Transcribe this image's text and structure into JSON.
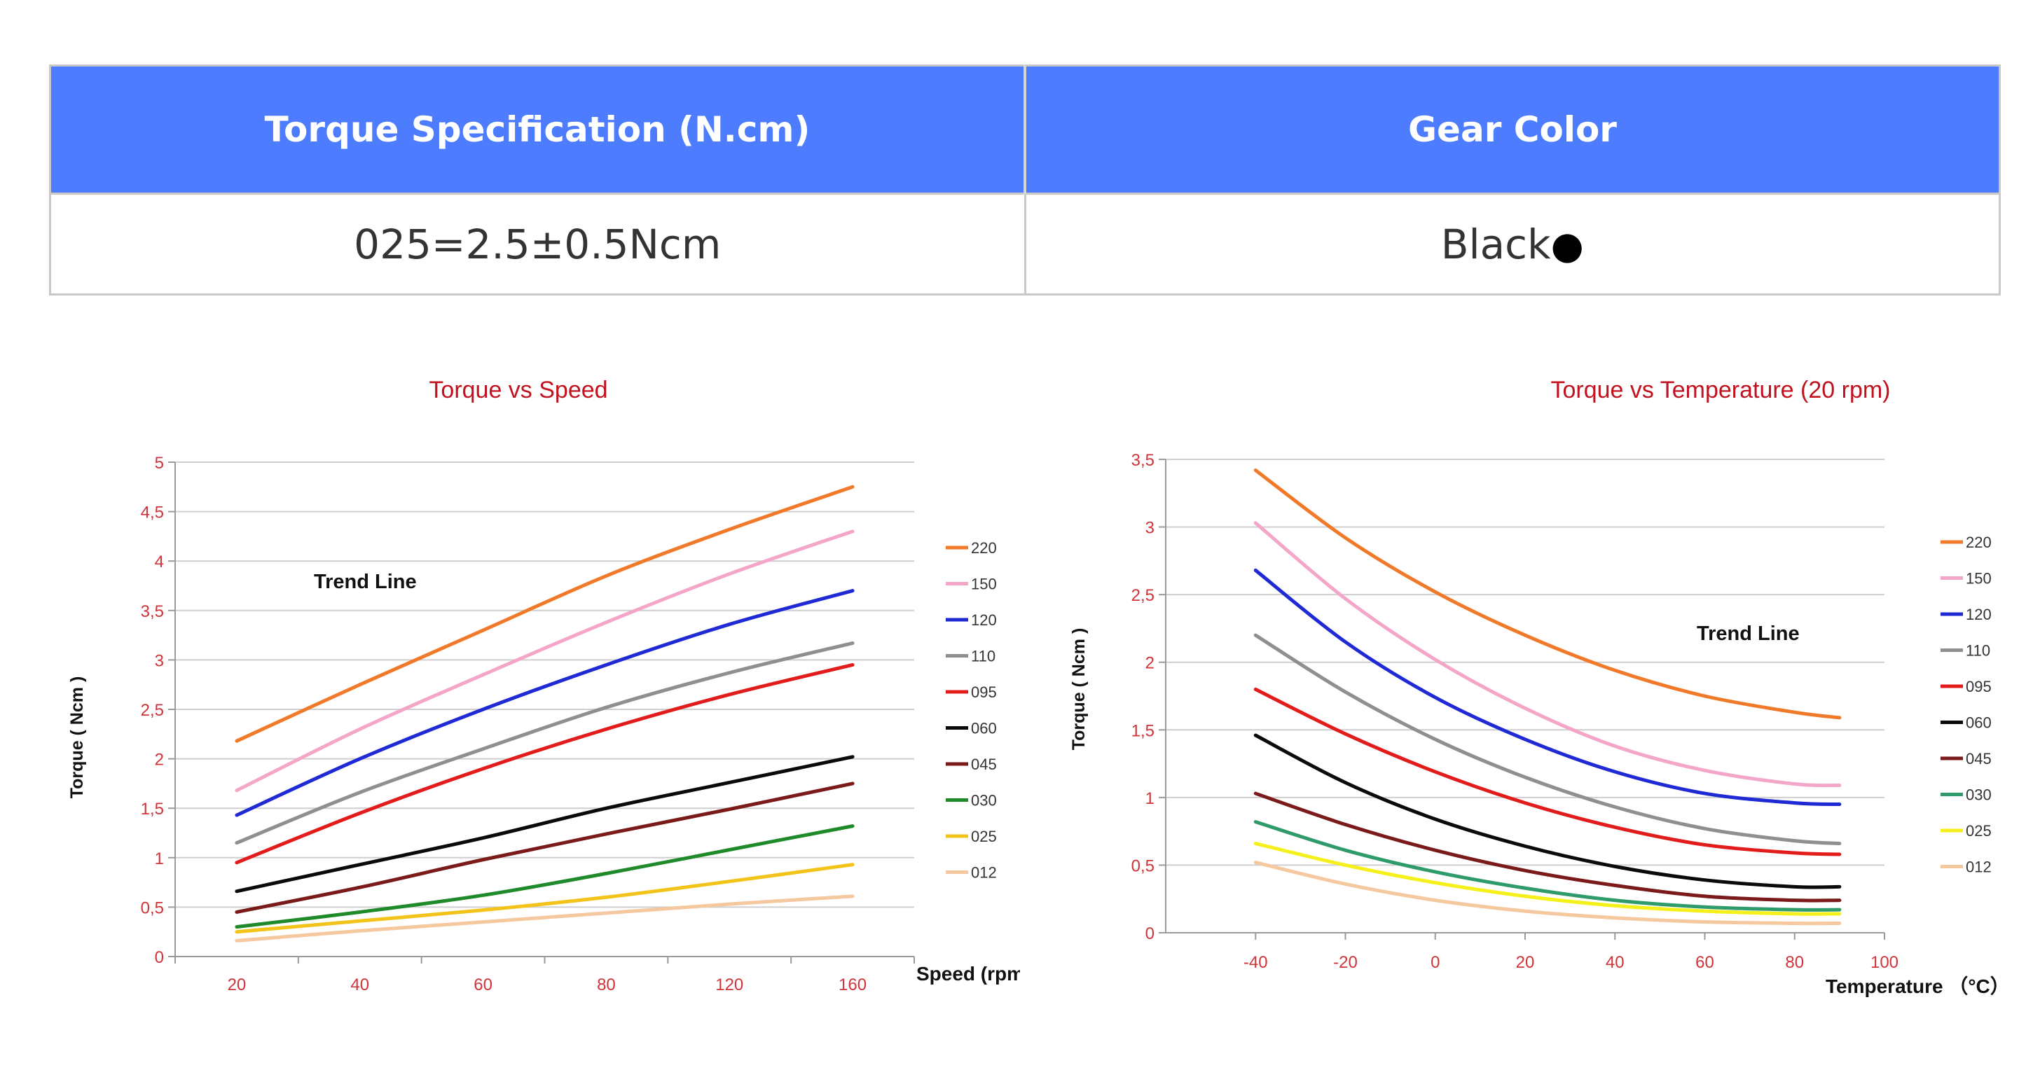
{
  "table": {
    "headers": [
      "Torque Specification (N.cm)",
      "Gear Color"
    ],
    "row": [
      "025=2.5±0.5Ncm",
      "Black"
    ],
    "color_dot": "●"
  },
  "chart_data": [
    {
      "type": "line",
      "title": "Torque vs Speed",
      "xlabel": "Speed (rpm)",
      "ylabel": "Torque ( Ncm )",
      "annotation": "Trend Line",
      "x_ticks": [
        "20",
        "40",
        "60",
        "80",
        "120",
        "160"
      ],
      "y_ticks": [
        "0",
        "0,5",
        "1",
        "1,5",
        "2",
        "2,5",
        "3",
        "3,5",
        "4",
        "4,5",
        "5"
      ],
      "ylim": [
        0,
        5
      ],
      "grid": true,
      "legend_position": "right",
      "x": [
        "20",
        "40",
        "60",
        "80",
        "120",
        "160"
      ],
      "series": [
        {
          "name": "220",
          "color": "#f07a2a",
          "values": [
            2.18,
            2.75,
            3.3,
            3.85,
            4.32,
            4.75
          ]
        },
        {
          "name": "150",
          "color": "#f4a6c8",
          "values": [
            1.68,
            2.3,
            2.85,
            3.38,
            3.87,
            4.3
          ]
        },
        {
          "name": "120",
          "color": "#1f2ad4",
          "values": [
            1.43,
            2.0,
            2.5,
            2.95,
            3.36,
            3.7
          ]
        },
        {
          "name": "110",
          "color": "#8f8f8f",
          "values": [
            1.15,
            1.66,
            2.1,
            2.52,
            2.87,
            3.17
          ]
        },
        {
          "name": "095",
          "color": "#e21b1b",
          "values": [
            0.95,
            1.45,
            1.9,
            2.3,
            2.65,
            2.95
          ]
        },
        {
          "name": "060",
          "color": "#0a0a0a",
          "values": [
            0.66,
            0.93,
            1.2,
            1.5,
            1.76,
            2.02
          ]
        },
        {
          "name": "045",
          "color": "#7a1a1a",
          "values": [
            0.45,
            0.7,
            0.98,
            1.24,
            1.49,
            1.75
          ]
        },
        {
          "name": "030",
          "color": "#1e8a2a",
          "values": [
            0.3,
            0.45,
            0.62,
            0.84,
            1.08,
            1.32
          ]
        },
        {
          "name": "025",
          "color": "#f2c318",
          "values": [
            0.25,
            0.36,
            0.47,
            0.6,
            0.76,
            0.93
          ]
        },
        {
          "name": "012",
          "color": "#f6c8a0",
          "values": [
            0.16,
            0.26,
            0.35,
            0.44,
            0.53,
            0.61
          ]
        }
      ]
    },
    {
      "type": "line",
      "title": "Torque vs Temperature (20 rpm)",
      "xlabel": "Temperature （°C）",
      "ylabel": "Torque ( Ncm )",
      "annotation": "Trend Line",
      "x_ticks": [
        "-40",
        "-20",
        "0",
        "20",
        "40",
        "60",
        "80",
        "100"
      ],
      "y_ticks": [
        "0",
        "0,5",
        "1",
        "1,5",
        "2",
        "2,5",
        "3",
        "3,5"
      ],
      "xlim": [
        -60,
        100
      ],
      "ylim": [
        0,
        3.5
      ],
      "grid": true,
      "legend_position": "right",
      "x": [
        -40,
        -20,
        0,
        20,
        40,
        60,
        80,
        90
      ],
      "series": [
        {
          "name": "220",
          "color": "#f07a2a",
          "values": [
            3.42,
            2.92,
            2.52,
            2.2,
            1.94,
            1.75,
            1.63,
            1.59
          ]
        },
        {
          "name": "150",
          "color": "#f4a6c8",
          "values": [
            3.03,
            2.47,
            2.02,
            1.66,
            1.38,
            1.2,
            1.1,
            1.09
          ]
        },
        {
          "name": "120",
          "color": "#1f2ad4",
          "values": [
            2.68,
            2.15,
            1.74,
            1.43,
            1.19,
            1.03,
            0.96,
            0.95
          ]
        },
        {
          "name": "110",
          "color": "#8f8f8f",
          "values": [
            2.2,
            1.78,
            1.43,
            1.15,
            0.93,
            0.77,
            0.68,
            0.66
          ]
        },
        {
          "name": "095",
          "color": "#e21b1b",
          "values": [
            1.8,
            1.47,
            1.19,
            0.96,
            0.78,
            0.65,
            0.59,
            0.58
          ]
        },
        {
          "name": "060",
          "color": "#0a0a0a",
          "values": [
            1.46,
            1.11,
            0.84,
            0.64,
            0.49,
            0.39,
            0.34,
            0.34
          ]
        },
        {
          "name": "045",
          "color": "#7a1a1a",
          "values": [
            1.03,
            0.8,
            0.61,
            0.46,
            0.35,
            0.27,
            0.24,
            0.24
          ]
        },
        {
          "name": "030",
          "color": "#2f9a6a",
          "values": [
            0.82,
            0.61,
            0.45,
            0.33,
            0.24,
            0.19,
            0.17,
            0.17
          ]
        },
        {
          "name": "025",
          "color": "#f5f01a",
          "values": [
            0.66,
            0.5,
            0.37,
            0.27,
            0.2,
            0.16,
            0.14,
            0.14
          ]
        },
        {
          "name": "012",
          "color": "#f6c8a0",
          "values": [
            0.52,
            0.36,
            0.24,
            0.16,
            0.11,
            0.08,
            0.07,
            0.07
          ]
        }
      ]
    }
  ]
}
